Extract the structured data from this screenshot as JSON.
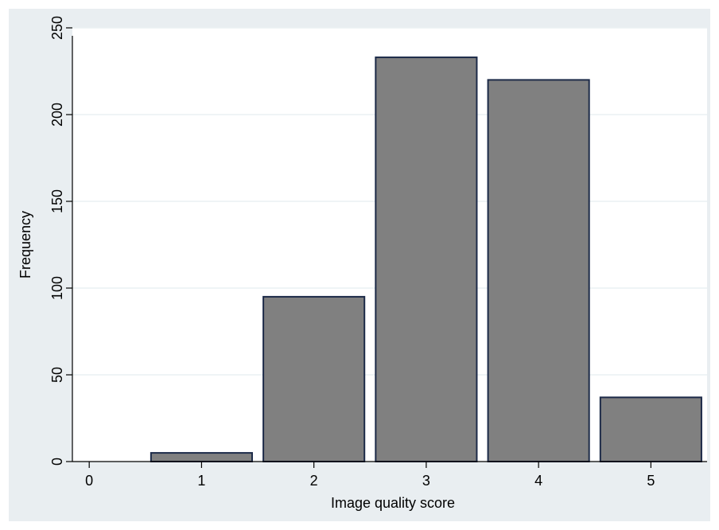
{
  "chart_data": {
    "type": "bar",
    "title": "",
    "xlabel": "Image quality score",
    "ylabel": "Frequency",
    "categories": [
      1,
      2,
      3,
      4,
      5
    ],
    "values": [
      5,
      95,
      233,
      220,
      37
    ],
    "bar_width": 0.9,
    "xlim": [
      -0.15,
      5.5
    ],
    "ylim": [
      0,
      250
    ],
    "x_ticks": [
      0,
      1,
      2,
      3,
      4,
      5
    ],
    "y_ticks": [
      0,
      50,
      100,
      150,
      200,
      250
    ],
    "grid": true,
    "colors": {
      "outer_background": "#e9eef1",
      "plot_background": "#ffffff",
      "bar_fill": "#808080",
      "bar_stroke": "#1c2a48",
      "gridline": "#eaf0f3",
      "axis": "#000000"
    }
  }
}
